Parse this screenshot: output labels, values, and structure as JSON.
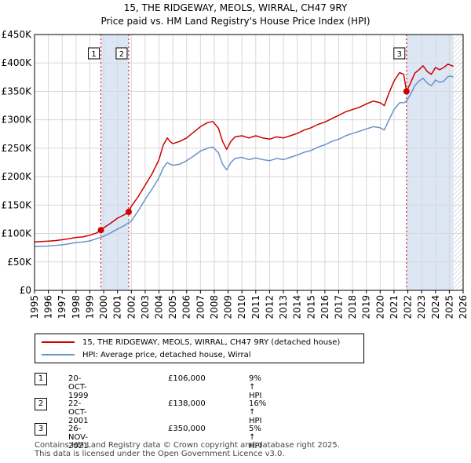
{
  "title": "15, THE RIDGEWAY, MEOLS, WIRRAL, CH47 9RY",
  "subtitle": "Price paid vs. HM Land Registry's House Price Index (HPI)",
  "colors": {
    "property": "#cc0000",
    "hpi": "#6a93c8",
    "shade": "#dde6f5",
    "grid": "#d8d8d8",
    "marker_line": "#cc0000"
  },
  "chart_data": {
    "type": "line",
    "title": "15, THE RIDGEWAY, MEOLS, WIRRAL, CH47 9RY",
    "subtitle": "Price paid vs. HM Land Registry's House Price Index (HPI)",
    "xlim": [
      1995,
      2026
    ],
    "ylim": [
      0,
      450000
    ],
    "y_ticks": [
      0,
      50000,
      100000,
      150000,
      200000,
      250000,
      300000,
      350000,
      400000,
      450000
    ],
    "y_tick_labels": [
      "£0",
      "£50K",
      "£100K",
      "£150K",
      "£200K",
      "£250K",
      "£300K",
      "£350K",
      "£400K",
      "£450K"
    ],
    "x_ticks": [
      1995,
      1996,
      1997,
      1998,
      1999,
      2000,
      2001,
      2002,
      2003,
      2004,
      2005,
      2006,
      2007,
      2008,
      2009,
      2010,
      2011,
      2012,
      2013,
      2014,
      2015,
      2016,
      2017,
      2018,
      2019,
      2020,
      2021,
      2022,
      2023,
      2024,
      2025,
      2026
    ],
    "x_tick_labels": [
      "1995",
      "1996",
      "1997",
      "1998",
      "1999",
      "2000",
      "2001",
      "2002",
      "2003",
      "2004",
      "2005",
      "2006",
      "2007",
      "2008",
      "2009",
      "2010",
      "2011",
      "2012",
      "2013",
      "2014",
      "2015",
      "2016",
      "2017",
      "2018",
      "2019",
      "2020",
      "2021",
      "2022",
      "2023",
      "2024",
      "2025",
      "2026"
    ],
    "grid": true,
    "shaded_periods": [
      [
        1999.8,
        2001.81
      ],
      [
        2021.9,
        2025.3
      ]
    ],
    "hatched_from": 2025.3,
    "series": [
      {
        "name": "15, THE RIDGEWAY, MEOLS, WIRRAL, CH47 9RY (detached house)",
        "color_key": "property",
        "x": [
          1995.0,
          1995.5,
          1996.0,
          1996.5,
          1997.0,
          1997.5,
          1998.0,
          1998.5,
          1999.0,
          1999.5,
          1999.8,
          2000.0,
          2000.5,
          2001.0,
          2001.5,
          2001.81,
          2002.0,
          2002.5,
          2003.0,
          2003.5,
          2004.0,
          2004.3,
          2004.6,
          2004.8,
          2005.0,
          2005.5,
          2006.0,
          2006.5,
          2007.0,
          2007.5,
          2007.9,
          2008.3,
          2008.6,
          2008.9,
          2009.2,
          2009.5,
          2010.0,
          2010.5,
          2011.0,
          2011.5,
          2012.0,
          2012.5,
          2013.0,
          2013.5,
          2014.0,
          2014.5,
          2015.0,
          2015.5,
          2016.0,
          2016.5,
          2017.0,
          2017.5,
          2018.0,
          2018.5,
          2019.0,
          2019.5,
          2020.0,
          2020.3,
          2020.6,
          2021.0,
          2021.4,
          2021.7,
          2021.9,
          2022.2,
          2022.5,
          2022.8,
          2023.1,
          2023.4,
          2023.7,
          2024.0,
          2024.3,
          2024.6,
          2024.9,
          2025.1,
          2025.3
        ],
        "values": [
          85000,
          86000,
          86500,
          87500,
          89000,
          91000,
          93000,
          94000,
          97000,
          101000,
          106000,
          110000,
          118000,
          127000,
          133000,
          138000,
          148000,
          165000,
          185000,
          205000,
          230000,
          255000,
          268000,
          262000,
          258000,
          262000,
          268000,
          278000,
          288000,
          295000,
          297000,
          285000,
          262000,
          248000,
          262000,
          270000,
          272000,
          268000,
          272000,
          268000,
          266000,
          270000,
          268000,
          272000,
          276000,
          282000,
          286000,
          292000,
          296000,
          302000,
          308000,
          314000,
          318000,
          322000,
          328000,
          333000,
          330000,
          325000,
          345000,
          368000,
          383000,
          380000,
          350000,
          365000,
          382000,
          388000,
          395000,
          385000,
          380000,
          392000,
          388000,
          392000,
          398000,
          396000,
          394000
        ]
      },
      {
        "name": "HPI: Average price, detached house, Wirral",
        "color_key": "hpi",
        "x": [
          1995.0,
          1995.5,
          1996.0,
          1996.5,
          1997.0,
          1997.5,
          1998.0,
          1998.5,
          1999.0,
          1999.5,
          2000.0,
          2000.5,
          2001.0,
          2001.5,
          2002.0,
          2002.5,
          2003.0,
          2003.5,
          2004.0,
          2004.3,
          2004.6,
          2004.8,
          2005.0,
          2005.5,
          2006.0,
          2006.5,
          2007.0,
          2007.5,
          2007.9,
          2008.3,
          2008.6,
          2008.9,
          2009.2,
          2009.5,
          2010.0,
          2010.5,
          2011.0,
          2011.5,
          2012.0,
          2012.5,
          2013.0,
          2013.5,
          2014.0,
          2014.5,
          2015.0,
          2015.5,
          2016.0,
          2016.5,
          2017.0,
          2017.5,
          2018.0,
          2018.5,
          2019.0,
          2019.5,
          2020.0,
          2020.3,
          2020.6,
          2021.0,
          2021.4,
          2021.7,
          2021.9,
          2022.2,
          2022.5,
          2022.8,
          2023.1,
          2023.4,
          2023.7,
          2024.0,
          2024.3,
          2024.6,
          2024.9,
          2025.1,
          2025.3
        ],
        "values": [
          77000,
          77500,
          78000,
          79000,
          80000,
          82000,
          84000,
          85000,
          87000,
          91000,
          95000,
          101000,
          108000,
          114000,
          122000,
          140000,
          160000,
          178000,
          198000,
          215000,
          225000,
          222000,
          220000,
          222000,
          228000,
          236000,
          245000,
          250000,
          252000,
          242000,
          222000,
          212000,
          225000,
          232000,
          234000,
          230000,
          233000,
          230000,
          228000,
          232000,
          230000,
          234000,
          238000,
          243000,
          246000,
          252000,
          256000,
          262000,
          266000,
          272000,
          276000,
          280000,
          284000,
          288000,
          286000,
          282000,
          298000,
          318000,
          330000,
          330000,
          333000,
          345000,
          360000,
          368000,
          373000,
          365000,
          360000,
          370000,
          366000,
          368000,
          376000,
          377000,
          375000
        ]
      }
    ],
    "sale_points": [
      {
        "label": "1",
        "x": 1999.8,
        "value": 106000
      },
      {
        "label": "2",
        "x": 2001.81,
        "value": 138000
      },
      {
        "label": "3",
        "x": 2021.9,
        "value": 350000
      }
    ]
  },
  "legend": {
    "property_label": "15, THE RIDGEWAY, MEOLS, WIRRAL, CH47 9RY (detached house)",
    "hpi_label": "HPI: Average price, detached house, Wirral"
  },
  "transactions": [
    {
      "num": "1",
      "date": "20-OCT-1999",
      "price": "£106,000",
      "hpi": "9% ↑ HPI"
    },
    {
      "num": "2",
      "date": "22-OCT-2001",
      "price": "£138,000",
      "hpi": "16% ↑ HPI"
    },
    {
      "num": "3",
      "date": "26-NOV-2021",
      "price": "£350,000",
      "hpi": "5% ↑ HPI"
    }
  ],
  "footer": {
    "line1": "Contains HM Land Registry data © Crown copyright and database right 2025.",
    "line2": "This data is licensed under the Open Government Licence v3.0."
  }
}
